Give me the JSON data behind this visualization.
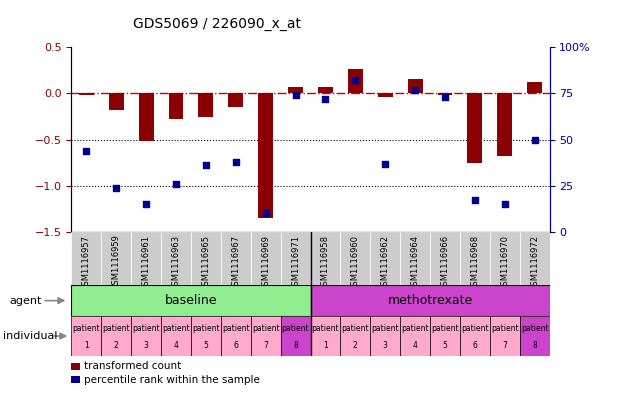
{
  "title": "GDS5069 / 226090_x_at",
  "samples": [
    "GSM1116957",
    "GSM1116959",
    "GSM1116961",
    "GSM1116963",
    "GSM1116965",
    "GSM1116967",
    "GSM1116969",
    "GSM1116971",
    "GSM1116958",
    "GSM1116960",
    "GSM1116962",
    "GSM1116964",
    "GSM1116966",
    "GSM1116968",
    "GSM1116970",
    "GSM1116972"
  ],
  "transformed_count": [
    -0.02,
    -0.18,
    -0.52,
    -0.28,
    -0.26,
    -0.15,
    -1.35,
    0.07,
    0.07,
    0.26,
    -0.04,
    0.15,
    -0.02,
    -0.75,
    -0.68,
    0.12
  ],
  "percentile_rank": [
    44,
    24,
    15,
    26,
    36,
    38,
    10,
    74,
    72,
    82,
    37,
    77,
    73,
    17,
    15,
    50
  ],
  "ylim_left": [
    -1.5,
    0.5
  ],
  "ylim_right": [
    0,
    100
  ],
  "hline_y": 0,
  "dotted_lines": [
    -0.5,
    -1.0
  ],
  "bar_color": "#8B0000",
  "dot_color": "#00008B",
  "hline_color": "#CC0000",
  "agent_groups": [
    {
      "label": "baseline",
      "start": 0,
      "end": 7,
      "color": "#90EE90"
    },
    {
      "label": "methotrexate",
      "start": 8,
      "end": 15,
      "color": "#CC44CC"
    }
  ],
  "legend_items": [
    {
      "label": "transformed count",
      "color": "#8B0000"
    },
    {
      "label": "percentile rank within the sample",
      "color": "#00008B"
    }
  ],
  "right_ticks": [
    0,
    25,
    50,
    75,
    100
  ],
  "right_tick_labels": [
    "0",
    "25",
    "50",
    "75",
    "100%"
  ],
  "left_ticks": [
    -1.5,
    -1.0,
    -0.5,
    0.0,
    0.5
  ],
  "background_color": "#FFFFFF",
  "sample_bg": "#CCCCCC",
  "patient_pink": "#FFAACC",
  "patient_purple": "#CC44CC",
  "bar_width": 0.5
}
